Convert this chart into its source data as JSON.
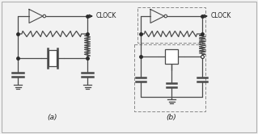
{
  "bg_color": "#f2f2f2",
  "line_color": "#4a4a4a",
  "dot_color": "#2a2a2a",
  "text_color": "#222222",
  "title_a": "(a)",
  "title_b": "(b)",
  "clock_label": "CLOCK",
  "fig_width": 3.19,
  "fig_height": 1.66,
  "dpi": 100
}
